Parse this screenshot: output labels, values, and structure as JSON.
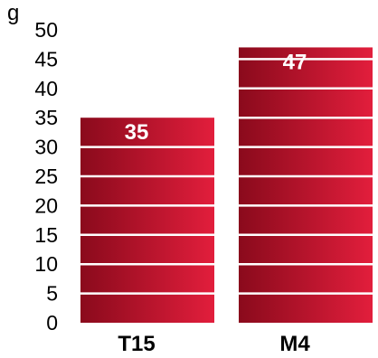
{
  "chart_data": {
    "type": "bar",
    "title": "g",
    "xlabel": "",
    "ylabel": "",
    "ylim": [
      0,
      50
    ],
    "yticks": [
      "0",
      "5",
      "10",
      "15",
      "20",
      "25",
      "30",
      "35",
      "40",
      "45",
      "50"
    ],
    "categories": [
      "T15",
      "M4"
    ],
    "values": [
      35,
      47
    ],
    "data_labels": [
      "35",
      "47"
    ],
    "grid": "horizontal white lines across bars",
    "colors": {
      "bar_dark": "#8a0a1c",
      "bar_light": "#e21e3c",
      "label_text": "#ffffff",
      "axis_text": "#000000"
    }
  }
}
